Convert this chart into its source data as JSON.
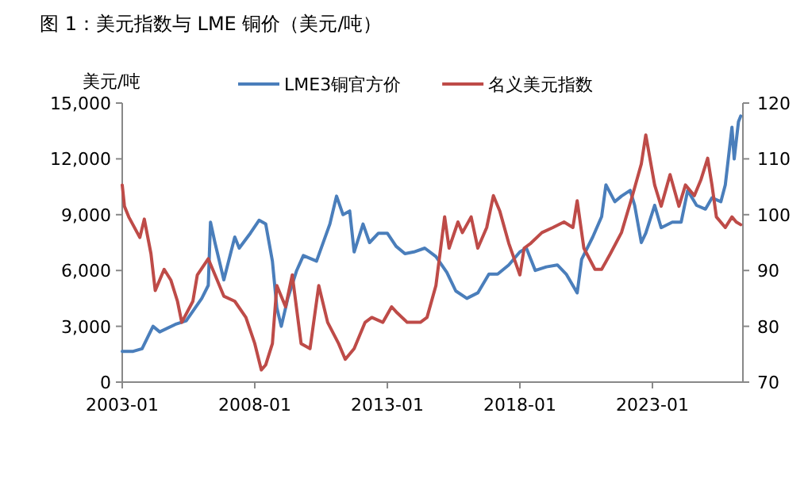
{
  "chart_data": {
    "type": "line",
    "title": "图 1：美元指数与 LME 铜价（美元/吨）",
    "ylabel": "美元/吨",
    "xlim": [
      "2003-01",
      "2026-06"
    ],
    "xticks": [
      {
        "value": "2003-01",
        "label": "2003-01"
      },
      {
        "value": "2008-01",
        "label": "2008-01"
      },
      {
        "value": "2013-01",
        "label": "2013-01"
      },
      {
        "value": "2018-01",
        "label": "2018-01"
      },
      {
        "value": "2023-01",
        "label": "2023-01"
      }
    ],
    "ylim": [
      0,
      15000
    ],
    "yticks": [
      {
        "value": 0,
        "label": "0"
      },
      {
        "value": 3000,
        "label": "3,000"
      },
      {
        "value": 6000,
        "label": "6,000"
      },
      {
        "value": 9000,
        "label": "9,000"
      },
      {
        "value": 12000,
        "label": "12,000"
      },
      {
        "value": 15000,
        "label": "15,000"
      }
    ],
    "y2lim": [
      70,
      120
    ],
    "y2ticks": [
      70,
      80,
      90,
      100,
      110,
      120
    ],
    "legend": "top",
    "grid": false,
    "series": [
      {
        "name": "LME3铜官方价",
        "color": "#4a7ebb",
        "x": [
          "2003-01",
          "2003-06",
          "2003-10",
          "2004-03",
          "2004-06",
          "2005-01",
          "2005-06",
          "2006-01",
          "2006-04",
          "2006-05",
          "2006-07",
          "2006-11",
          "2007-04",
          "2007-06",
          "2007-11",
          "2008-03",
          "2008-06",
          "2008-09",
          "2008-11",
          "2009-01",
          "2009-04",
          "2009-08",
          "2009-11",
          "2010-05",
          "2010-11",
          "2011-02",
          "2011-05",
          "2011-08",
          "2011-10",
          "2012-02",
          "2012-05",
          "2012-09",
          "2013-01",
          "2013-05",
          "2013-09",
          "2014-01",
          "2014-06",
          "2014-11",
          "2015-04",
          "2015-08",
          "2016-01",
          "2016-06",
          "2016-11",
          "2017-03",
          "2017-08",
          "2018-01",
          "2018-04",
          "2018-08",
          "2019-01",
          "2019-06",
          "2019-10",
          "2020-03",
          "2020-05",
          "2020-10",
          "2021-02",
          "2021-04",
          "2021-08",
          "2021-11",
          "2022-03",
          "2022-05",
          "2022-08",
          "2022-10",
          "2023-02",
          "2023-05",
          "2023-10",
          "2024-02",
          "2024-05",
          "2024-09",
          "2025-01",
          "2025-04",
          "2025-08",
          "2025-10",
          "2026-01",
          "2026-02",
          "2026-04",
          "2026-05"
        ],
        "values": [
          1650,
          1650,
          1800,
          3000,
          2700,
          3100,
          3300,
          4500,
          5200,
          8600,
          7500,
          5500,
          7800,
          7200,
          8000,
          8700,
          8500,
          6500,
          4000,
          3000,
          4500,
          6000,
          6800,
          6500,
          8500,
          10000,
          9000,
          9200,
          7000,
          8500,
          7500,
          8000,
          8000,
          7300,
          6900,
          7000,
          7200,
          6750,
          5900,
          4900,
          4500,
          4800,
          5800,
          5800,
          6300,
          7000,
          7200,
          6000,
          6200,
          6300,
          5800,
          4800,
          6600,
          7800,
          8900,
          10600,
          9700,
          10000,
          10300,
          9500,
          7500,
          8000,
          9500,
          8300,
          8600,
          8600,
          10300,
          9500,
          9300,
          9900,
          9700,
          10600,
          13700,
          12000,
          14000,
          14300
        ]
      },
      {
        "name": "名义美元指数",
        "color": "#be4b48",
        "axis": "y2",
        "x": [
          "2003-01",
          "2003-02",
          "2003-04",
          "2003-09",
          "2003-11",
          "2004-02",
          "2004-04",
          "2004-08",
          "2004-11",
          "2005-02",
          "2005-04",
          "2005-09",
          "2005-11",
          "2006-04",
          "2006-08",
          "2006-11",
          "2007-04",
          "2007-09",
          "2008-01",
          "2008-04",
          "2008-06",
          "2008-09",
          "2008-11",
          "2009-03",
          "2009-06",
          "2009-10",
          "2010-02",
          "2010-06",
          "2010-10",
          "2011-03",
          "2011-06",
          "2011-10",
          "2012-03",
          "2012-06",
          "2012-11",
          "2013-03",
          "2013-05",
          "2013-10",
          "2014-04",
          "2014-07",
          "2014-11",
          "2015-03",
          "2015-05",
          "2015-09",
          "2015-11",
          "2016-03",
          "2016-06",
          "2016-10",
          "2017-01",
          "2017-04",
          "2017-08",
          "2018-01",
          "2018-03",
          "2018-06",
          "2018-11",
          "2019-04",
          "2019-09",
          "2020-01",
          "2020-03",
          "2020-06",
          "2020-11",
          "2021-02",
          "2021-06",
          "2021-11",
          "2022-04",
          "2022-08",
          "2022-10",
          "2023-02",
          "2023-05",
          "2023-09",
          "2024-01",
          "2024-04",
          "2024-08",
          "2024-11",
          "2025-02",
          "2025-04",
          "2025-06",
          "2025-10",
          "2026-01",
          "2026-03",
          "2026-05"
        ],
        "values": [
          105.3,
          101.5,
          99.6,
          95.9,
          99.2,
          93,
          86.4,
          90.2,
          88.3,
          84.5,
          80.7,
          84.5,
          89.2,
          92.1,
          88.3,
          85.4,
          84.5,
          81.6,
          76.9,
          72.2,
          73.1,
          76.9,
          87.3,
          83.5,
          89.2,
          76.9,
          76,
          87.3,
          80.7,
          76.9,
          74.1,
          76,
          80.7,
          81.6,
          80.7,
          83.5,
          82.6,
          80.7,
          80.7,
          81.6,
          87.3,
          99.6,
          94,
          98.7,
          96.8,
          99.6,
          94,
          97.7,
          103.4,
          100.6,
          94.9,
          89.2,
          94,
          94.9,
          96.8,
          97.7,
          98.7,
          97.7,
          102.5,
          94,
          90.2,
          90.2,
          93,
          96.8,
          103.4,
          109.1,
          114.3,
          105.3,
          101.5,
          107.2,
          101.5,
          105.3,
          103.4,
          106.3,
          110.1,
          105.3,
          99.6,
          97.7,
          99.6,
          98.7,
          98.2
        ]
      }
    ]
  }
}
